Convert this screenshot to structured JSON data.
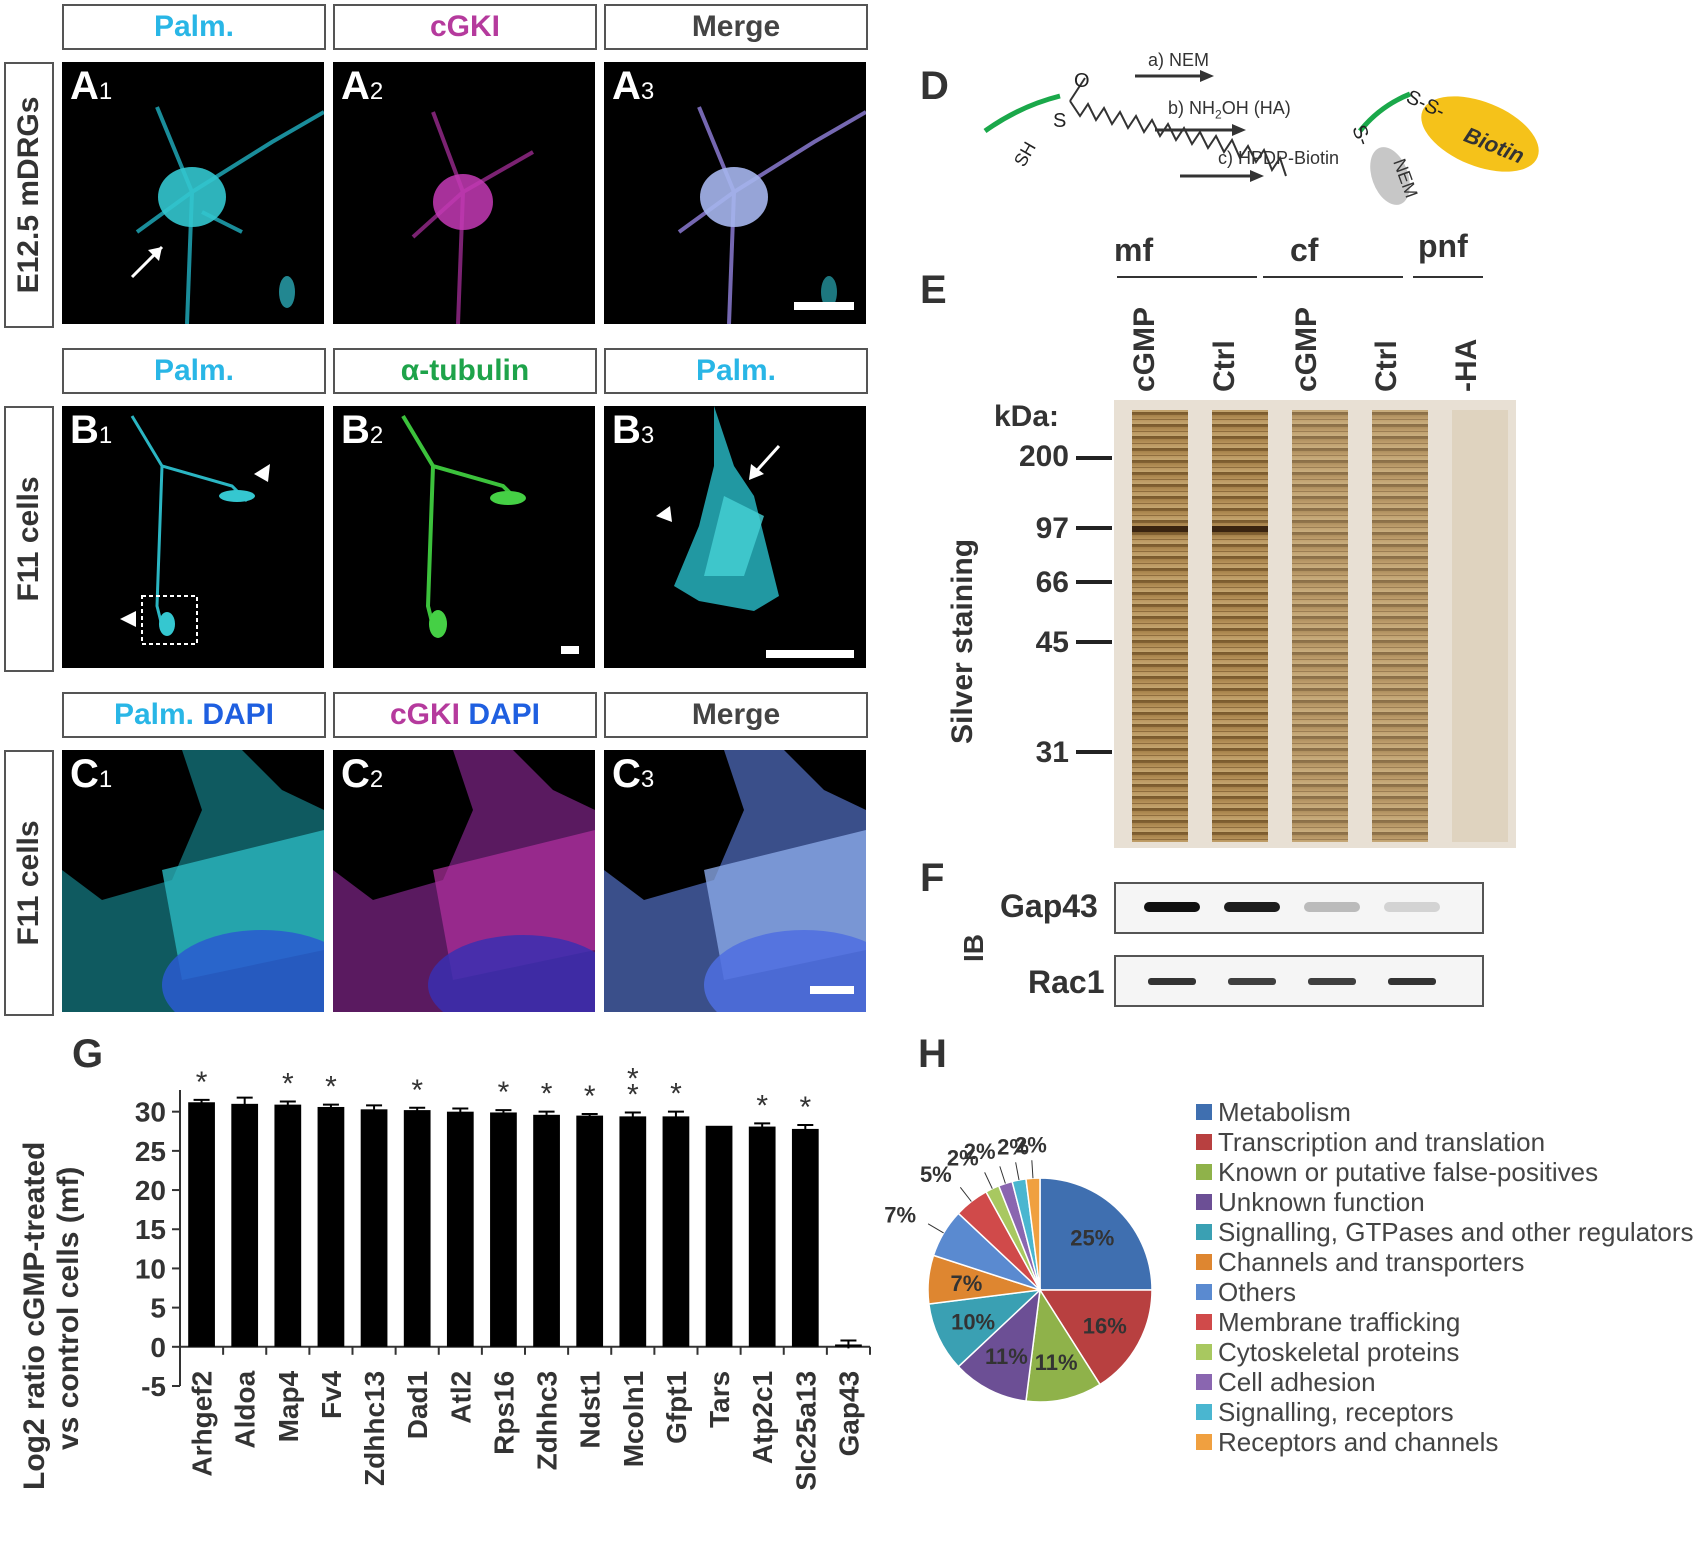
{
  "panel_letters": {
    "D": "D",
    "E": "E",
    "F": "F",
    "G": "G",
    "H": "H"
  },
  "row_labels": {
    "A": "E12.5 mDRGs",
    "B": "F11 cells",
    "C": "F11 cells"
  },
  "headers": {
    "A1": "Palm.",
    "A2": "cGKI",
    "A3": "Merge",
    "B1": "Palm.",
    "B2": "α-tubulin",
    "B3": "Palm.",
    "C1a": "Palm.",
    "C1b": "DAPI",
    "C2a": "cGKI",
    "C2b": "DAPI",
    "C3": "Merge"
  },
  "image_labels": {
    "A1": {
      "letter": "A",
      "sub": "1"
    },
    "A2": {
      "letter": "A",
      "sub": "2"
    },
    "A3": {
      "letter": "A",
      "sub": "3"
    },
    "B1": {
      "letter": "B",
      "sub": "1"
    },
    "B2": {
      "letter": "B",
      "sub": "2"
    },
    "B3": {
      "letter": "B",
      "sub": "3"
    },
    "C1": {
      "letter": "C",
      "sub": "1"
    },
    "C2": {
      "letter": "C",
      "sub": "2"
    },
    "C3": {
      "letter": "C",
      "sub": "3"
    }
  },
  "scheme": {
    "step_a": "a) NEM",
    "step_b_pre": "b) NH",
    "step_b_sub": "2",
    "step_b_post": "OH (HA)",
    "step_c": "c) HPDP-Biotin",
    "sh": "SH",
    "s_left": "S",
    "o": "O",
    "ss": "S-S-",
    "s_nem": "S-",
    "nem": "NEM",
    "biotin": "Biotin"
  },
  "gel": {
    "groups": [
      "mf",
      "cf",
      "pnf"
    ],
    "lanes": [
      "cGMP",
      "Ctrl",
      "cGMP",
      "Ctrl",
      "-HA"
    ],
    "kda_label": "kDa:",
    "markers": [
      "200",
      "97",
      "66",
      "45",
      "31"
    ],
    "side_label": "Silver staining"
  },
  "blot": {
    "ib_label": "IB",
    "rows": [
      "Gap43",
      "Rac1"
    ],
    "gap43_intensity": [
      1.0,
      0.95,
      0.25,
      0.15,
      0.0
    ],
    "rac1_intensity": [
      0.85,
      0.8,
      0.8,
      0.85,
      0.0
    ]
  },
  "chart_data": [
    {
      "type": "bar",
      "categories": [
        "Arhgef2",
        "Aldoa",
        "Map4",
        "Fv4",
        "Zdhhc13",
        "Dad1",
        "Atl2",
        "Rps16",
        "Zdhhc3",
        "Ndst1",
        "Mcoln1",
        "Gfpt1",
        "Tars",
        "Atp2c1",
        "Slc25a13",
        "Gap43"
      ],
      "values": [
        31.2,
        31.0,
        30.9,
        30.6,
        30.3,
        30.2,
        30.0,
        29.9,
        29.6,
        29.5,
        29.4,
        29.4,
        28.2,
        28.1,
        27.8,
        0.3
      ],
      "errors": [
        0.3,
        0.8,
        0.4,
        0.3,
        0.5,
        0.3,
        0.4,
        0.3,
        0.4,
        0.2,
        0.5,
        0.6,
        0.0,
        0.4,
        0.5,
        0.5
      ],
      "significance": [
        "*",
        "",
        "*",
        "*",
        "",
        "*",
        "",
        "*",
        "*",
        "*",
        "**",
        "*",
        "",
        "*",
        "*",
        ""
      ],
      "ylabel_line1": "Log2 ratio cGMP-treated",
      "ylabel_line2": "vs control cells (mf)",
      "ylim": [
        -5,
        32
      ],
      "yticks": [
        30,
        25,
        20,
        15,
        10,
        5,
        0,
        -5
      ]
    },
    {
      "type": "pie",
      "labels": [
        "Metabolism",
        "Transcription and translation",
        "Known or putative false-positives",
        "Unknown function",
        "Signalling, GTPases and other regulators",
        "Channels and transporters",
        "Others",
        "Membrane trafficking",
        "Cytoskeletal proteins",
        "Cell adhesion",
        "Signalling, receptors",
        "Receptors and channels"
      ],
      "values": [
        25,
        16,
        11,
        11,
        10,
        7,
        7,
        5,
        2,
        2,
        2,
        2
      ],
      "value_labels": [
        "25%",
        "16%",
        "11%",
        "11%",
        "10%",
        "7%",
        "7%",
        "5%",
        "2%",
        "2%",
        "2%",
        "2%"
      ],
      "colors": [
        "#3f6fb0",
        "#b84040",
        "#8fb24a",
        "#6c4f95",
        "#3aa0b3",
        "#de8630",
        "#5a8ad0",
        "#d04a4a",
        "#a8c860",
        "#8a66b0",
        "#4ab6d0",
        "#f0a040"
      ]
    }
  ]
}
